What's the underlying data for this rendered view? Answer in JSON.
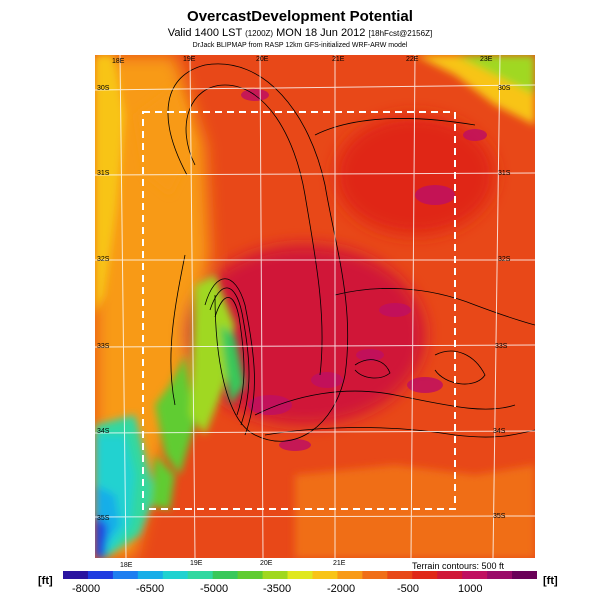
{
  "title": "OvercastDevelopment Potential",
  "subtitle_main": "Valid 1400 LST",
  "subtitle_small": "(1200Z)",
  "subtitle_date": "MON 18 Jun 2012",
  "subtitle_run": "[18hFcst@2156Z]",
  "credit": "DrJack BLIPMAP from RASP 12km GFS-initialized WRF-ARW model",
  "terrain_note": "Terrain contours: 500 ft",
  "unit_left": "[ft]",
  "unit_right": "[ft]",
  "lon_top": [
    "18E",
    "19E",
    "20E",
    "21E",
    "22E",
    "23E"
  ],
  "lon_bottom": [
    "18E",
    "19E",
    "20E",
    "21E"
  ],
  "lat_left": [
    "30S",
    "31S",
    "32S",
    "33S",
    "34S",
    "35S"
  ],
  "lat_right": [
    "30S",
    "31S",
    "32S",
    "33S",
    "34S",
    "35S"
  ],
  "colorbar": {
    "labels": [
      "-8000",
      "-6500",
      "-5000",
      "-3500",
      "-2000",
      "-500",
      "1000"
    ],
    "colors": [
      "#2a14a0",
      "#1f3ce0",
      "#1e7ef0",
      "#18aee8",
      "#20d2d0",
      "#30d8a0",
      "#38c85a",
      "#60cc30",
      "#a0d820",
      "#e0e820",
      "#f8c418",
      "#f89a18",
      "#f06e18",
      "#e84818",
      "#e02818",
      "#d01838",
      "#c01060",
      "#9a0a68",
      "#6a0058"
    ]
  },
  "colors": {
    "map_base": "#e84818",
    "water": "#1e7ef0",
    "domain_box": "#ffffff"
  }
}
